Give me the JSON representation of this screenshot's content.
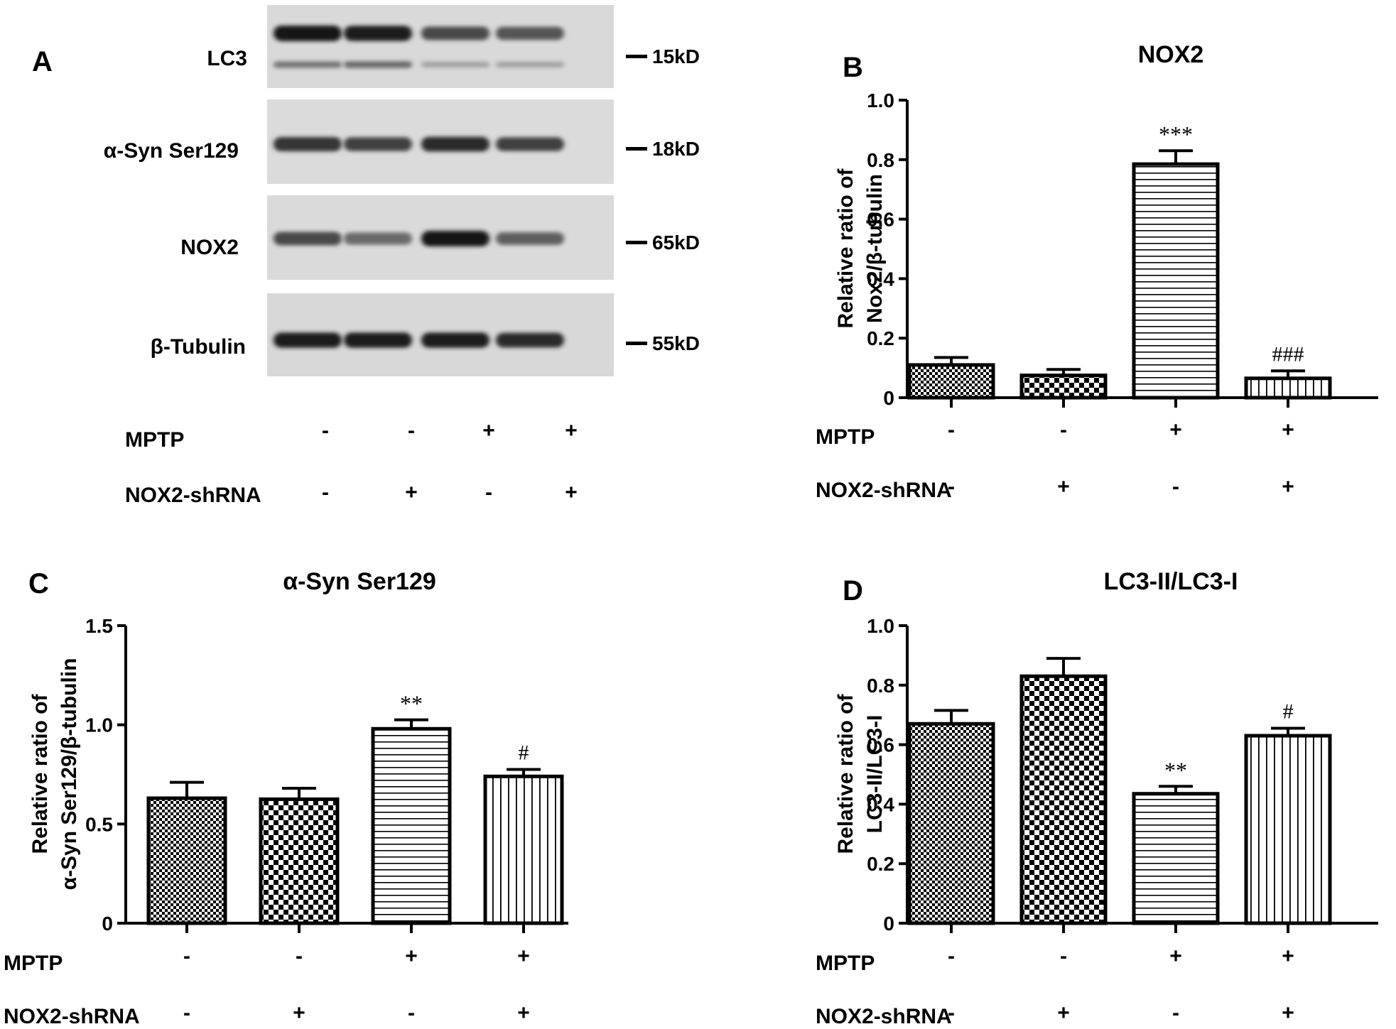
{
  "panel_a": {
    "letter": "A",
    "blots": [
      {
        "label": "LC3",
        "marker": "15kD",
        "bands": [
          1.0,
          0.95,
          0.75,
          0.7
        ],
        "second_bands": [
          0.55,
          0.6,
          0.35,
          0.35
        ]
      },
      {
        "label": "α-Syn Ser129",
        "marker": "18kD",
        "bands": [
          0.85,
          0.8,
          0.9,
          0.8
        ],
        "second_bands": []
      },
      {
        "label": "NOX2",
        "marker": "65kD",
        "bands": [
          0.75,
          0.6,
          1.0,
          0.65
        ],
        "second_bands": []
      },
      {
        "label": "β-Tubulin",
        "marker": "55kD",
        "bands": [
          0.95,
          0.95,
          0.95,
          0.9
        ],
        "second_bands": []
      }
    ],
    "conditions": {
      "rows": [
        {
          "label": "MPTP",
          "values": [
            "-",
            "-",
            "+",
            "+"
          ]
        },
        {
          "label": "NOX2-shRNA",
          "values": [
            "-",
            "+",
            "-",
            "+"
          ]
        }
      ]
    }
  },
  "chart_data": [
    {
      "type": "bar",
      "letter": "B",
      "title": "NOX2",
      "ylabel": [
        "Relative ratio of",
        "Nox2/β-tubulin"
      ],
      "ylim": [
        0,
        1.0
      ],
      "yticks": [
        "0",
        "0.2",
        "0.4",
        "0.6",
        "0.8",
        "1.0"
      ],
      "values": [
        0.11,
        0.075,
        0.785,
        0.065
      ],
      "errors": [
        0.025,
        0.02,
        0.045,
        0.025
      ],
      "annotations": [
        "",
        "",
        "***",
        "###"
      ],
      "patterns": [
        "fine-check",
        "check",
        "hstripe",
        "vstripe"
      ],
      "conditions": [
        {
          "label": "MPTP",
          "values": [
            "-",
            "-",
            "+",
            "+"
          ]
        },
        {
          "label": "NOX2-shRNA",
          "values": [
            "-",
            "+",
            "-",
            "+"
          ]
        }
      ]
    },
    {
      "type": "bar",
      "letter": "C",
      "title": "α-Syn Ser129",
      "ylabel": [
        "Relative ratio of",
        "α-Syn Ser129/β-tubulin"
      ],
      "ylim": [
        0,
        1.5
      ],
      "yticks": [
        "0",
        "0.5",
        "1.0",
        "1.5"
      ],
      "values": [
        0.63,
        0.625,
        0.98,
        0.74
      ],
      "errors": [
        0.08,
        0.055,
        0.045,
        0.035
      ],
      "annotations": [
        "",
        "",
        "**",
        "#"
      ],
      "patterns": [
        "fine-check",
        "check",
        "hstripe",
        "vstripe"
      ],
      "conditions": [
        {
          "label": "MPTP",
          "values": [
            "-",
            "-",
            "+",
            "+"
          ]
        },
        {
          "label": "NOX2-shRNA",
          "values": [
            "-",
            "+",
            "-",
            "+"
          ]
        }
      ]
    },
    {
      "type": "bar",
      "letter": "D",
      "title": "LC3-II/LC3-I",
      "ylabel": [
        "Relative ratio of",
        "LC3-II/LC3-I"
      ],
      "ylim": [
        0,
        1.0
      ],
      "yticks": [
        "0",
        "0.2",
        "0.4",
        "0.6",
        "0.8",
        "1.0"
      ],
      "values": [
        0.67,
        0.83,
        0.435,
        0.63
      ],
      "errors": [
        0.045,
        0.06,
        0.025,
        0.025
      ],
      "annotations": [
        "",
        "",
        "**",
        "#"
      ],
      "patterns": [
        "fine-check",
        "check",
        "hstripe",
        "vstripe"
      ],
      "conditions": [
        {
          "label": "MPTP",
          "values": [
            "-",
            "-",
            "+",
            "+"
          ]
        },
        {
          "label": "NOX2-shRNA",
          "values": [
            "-",
            "+",
            "-",
            "+"
          ]
        }
      ]
    }
  ]
}
